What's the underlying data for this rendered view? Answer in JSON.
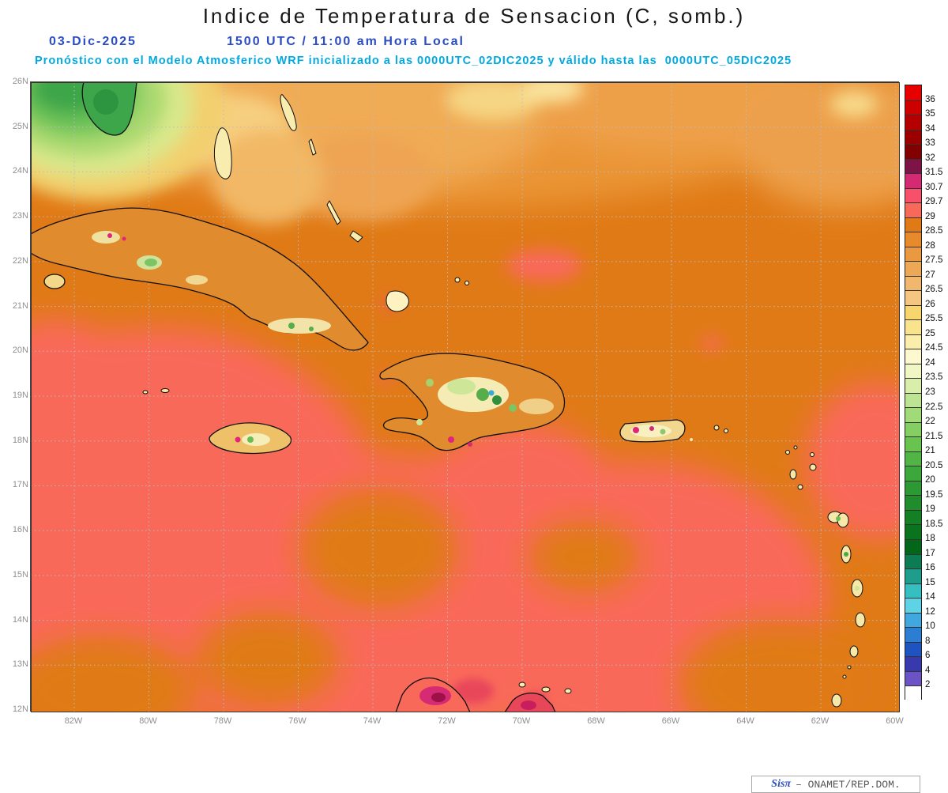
{
  "header": {
    "title": "Indice de Temperatura de Sensacion (C, somb.)",
    "date": "03-Dic-2025",
    "time": "1500 UTC / 11:00 am Hora Local",
    "forecast": "Pronóstico con el Modelo Atmosferico WRF inicializado a las 0000UTC_02DIC2025 y válido hasta las  0000UTC_05DIC2025",
    "title_color": "#171717",
    "date_color": "#2b4cc4",
    "forecast_color": "#00a9e0"
  },
  "map": {
    "lat_labels": [
      "26N",
      "25N",
      "24N",
      "23N",
      "22N",
      "21N",
      "20N",
      "19N",
      "18N",
      "17N",
      "16N",
      "15N",
      "14N",
      "13N",
      "12N"
    ],
    "lon_labels": [
      "82W",
      "80W",
      "78W",
      "76W",
      "74W",
      "72W",
      "70W",
      "68W",
      "66W",
      "64W",
      "62W",
      "60W"
    ],
    "base_color": "#e07a16",
    "hot_color": "#f9695a",
    "grid_color": "#bbbbbb"
  },
  "colorbar": {
    "units": "C",
    "cells": [
      {
        "color": "#e60000",
        "label": "36"
      },
      {
        "color": "#cd0000",
        "label": "35"
      },
      {
        "color": "#b40000",
        "label": "34"
      },
      {
        "color": "#9b0000",
        "label": "33"
      },
      {
        "color": "#830000",
        "label": "32"
      },
      {
        "color": "#7d1346",
        "label": "31.5"
      },
      {
        "color": "#d42a74",
        "label": "30.7"
      },
      {
        "color": "#f6506a",
        "label": "29.7"
      },
      {
        "color": "#f9695a",
        "label": "29"
      },
      {
        "color": "#e07a16",
        "label": "28.5"
      },
      {
        "color": "#e68a2b",
        "label": "28"
      },
      {
        "color": "#ea9941",
        "label": "27.5"
      },
      {
        "color": "#eda856",
        "label": "27"
      },
      {
        "color": "#f1b76c",
        "label": "26.5"
      },
      {
        "color": "#f4c681",
        "label": "26"
      },
      {
        "color": "#f7d66e",
        "label": "25.5"
      },
      {
        "color": "#f9e38c",
        "label": "25"
      },
      {
        "color": "#fbeeab",
        "label": "24.5"
      },
      {
        "color": "#fdf8cf",
        "label": "24"
      },
      {
        "color": "#f0f6c4",
        "label": "23.5"
      },
      {
        "color": "#d9eeab",
        "label": "23"
      },
      {
        "color": "#bde492",
        "label": "22.5"
      },
      {
        "color": "#a1da79",
        "label": "22"
      },
      {
        "color": "#85cf62",
        "label": "21.5"
      },
      {
        "color": "#69c34f",
        "label": "21"
      },
      {
        "color": "#50b545",
        "label": "20.5"
      },
      {
        "color": "#3ca83c",
        "label": "20"
      },
      {
        "color": "#2c9a33",
        "label": "19.5"
      },
      {
        "color": "#1f8d2b",
        "label": "19"
      },
      {
        "color": "#138024",
        "label": "18.5"
      },
      {
        "color": "#0a731e",
        "label": "18"
      },
      {
        "color": "#046618",
        "label": "17"
      },
      {
        "color": "#0c7d52",
        "label": "16"
      },
      {
        "color": "#1f9d8c",
        "label": "15"
      },
      {
        "color": "#36bfc0",
        "label": "14"
      },
      {
        "color": "#5fd3e6",
        "label": "12"
      },
      {
        "color": "#41a7df",
        "label": "10"
      },
      {
        "color": "#2c7ed2",
        "label": "8"
      },
      {
        "color": "#1e54c0",
        "label": "6"
      },
      {
        "color": "#3939ae",
        "label": "4"
      },
      {
        "color": "#6b53c6",
        "label": "2"
      },
      {
        "color": "#ffffff",
        "label": ""
      }
    ]
  },
  "watermark": {
    "brand": "Sisπ",
    "org": "– ONAMET/REP.DOM."
  }
}
